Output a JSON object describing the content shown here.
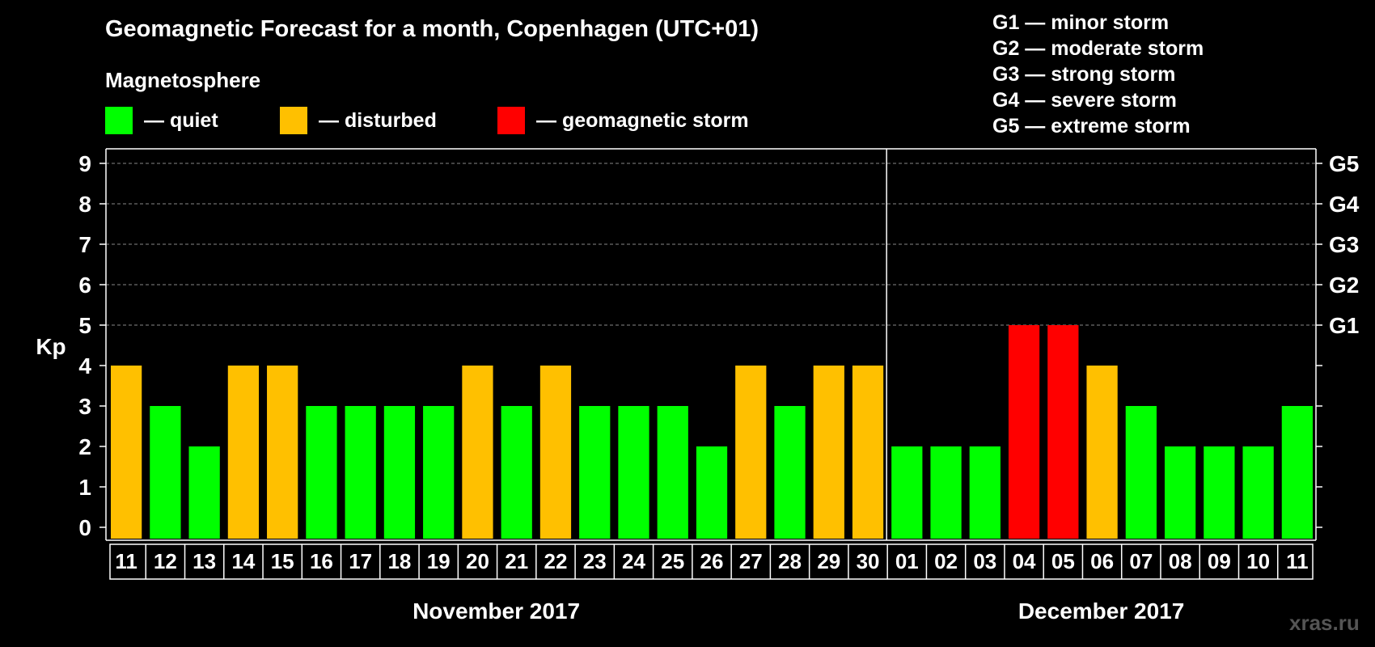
{
  "title": "Geomagnetic Forecast for a month, Copenhagen (UTC+01)",
  "subtitle": "Magnetosphere",
  "legend": [
    {
      "label": "— quiet",
      "color": "#00ff00"
    },
    {
      "label": "— disturbed",
      "color": "#ffc000"
    },
    {
      "label": "— geomagnetic storm",
      "color": "#ff0000"
    }
  ],
  "storm_levels": [
    "G1 — minor storm",
    "G2 — moderate storm",
    "G3 — strong storm",
    "G4 — severe storm",
    "G5 — extreme storm"
  ],
  "watermark": "xras.ru",
  "chart_data": {
    "type": "bar",
    "ylabel": "Kp",
    "ylim": [
      0,
      9
    ],
    "yticks": [
      "0",
      "1",
      "2",
      "3",
      "4",
      "5",
      "6",
      "7",
      "8",
      "9"
    ],
    "right_ticks": [
      {
        "kp": 5,
        "label": "G1"
      },
      {
        "kp": 6,
        "label": "G2"
      },
      {
        "kp": 7,
        "label": "G3"
      },
      {
        "kp": 8,
        "label": "G4"
      },
      {
        "kp": 9,
        "label": "G5"
      }
    ],
    "grid": "dashed horizontal lines at Kp 5–9",
    "categories": [
      "11",
      "12",
      "13",
      "14",
      "15",
      "16",
      "17",
      "18",
      "19",
      "20",
      "21",
      "22",
      "23",
      "24",
      "25",
      "26",
      "27",
      "28",
      "29",
      "30",
      "01",
      "02",
      "03",
      "04",
      "05",
      "06",
      "07",
      "08",
      "09",
      "10",
      "11"
    ],
    "values": [
      4,
      3,
      2,
      4,
      4,
      3,
      3,
      3,
      3,
      4,
      3,
      4,
      3,
      3,
      3,
      2,
      4,
      3,
      4,
      4,
      2,
      2,
      2,
      5,
      5,
      4,
      3,
      2,
      2,
      2,
      3
    ],
    "status": [
      "disturbed",
      "quiet",
      "quiet",
      "disturbed",
      "disturbed",
      "quiet",
      "quiet",
      "quiet",
      "quiet",
      "disturbed",
      "quiet",
      "disturbed",
      "quiet",
      "quiet",
      "quiet",
      "quiet",
      "disturbed",
      "quiet",
      "disturbed",
      "disturbed",
      "quiet",
      "quiet",
      "quiet",
      "storm",
      "storm",
      "disturbed",
      "quiet",
      "quiet",
      "quiet",
      "quiet",
      "quiet"
    ],
    "colors": {
      "quiet": "#00ff00",
      "disturbed": "#ffc000",
      "storm": "#ff0000"
    },
    "months": [
      {
        "label": "November 2017",
        "days": 20
      },
      {
        "label": "December 2017",
        "days": 11
      }
    ]
  }
}
